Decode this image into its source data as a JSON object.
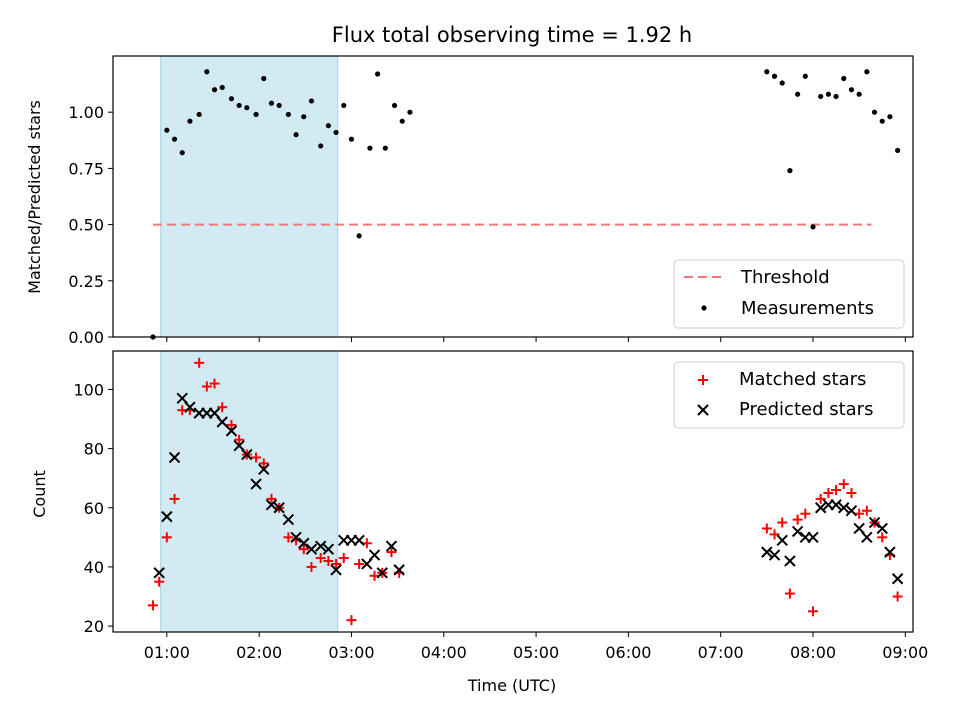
{
  "chart_data": [
    {
      "type": "scatter",
      "title": "Flux total observing time = 1.92 h",
      "xlabel": "",
      "ylabel": "Matched/Predicted stars",
      "xlim": [
        "00:25",
        "09:05"
      ],
      "ylim": [
        0,
        1.25
      ],
      "yticks": [
        {
          "value": 0,
          "label": "0.00"
        },
        {
          "value": 0.25,
          "label": "0.25"
        },
        {
          "value": 0.5,
          "label": "0.50"
        },
        {
          "value": 0.75,
          "label": "0.75"
        },
        {
          "value": 1.0,
          "label": "1.00"
        }
      ],
      "xticks": [
        "01:00",
        "02:00",
        "03:00",
        "04:00",
        "05:00",
        "06:00",
        "07:00",
        "08:00",
        "09:00"
      ],
      "shaded_interval": [
        "00:56",
        "02:51"
      ],
      "shaded_color": "#add8e6",
      "threshold": {
        "name": "Threshold",
        "value": 0.5,
        "x": [
          "00:51",
          "08:38"
        ],
        "color": "#f07878",
        "style": "dashed"
      },
      "legend": {
        "placement": "lower right",
        "entries": [
          "Threshold",
          "Measurements"
        ]
      },
      "series": [
        {
          "name": "Measurements",
          "marker": "dot",
          "color": "#000000",
          "points": [
            [
              "00:51",
              0.0
            ],
            [
              "01:00",
              0.92
            ],
            [
              "01:05",
              0.88
            ],
            [
              "01:10",
              0.82
            ],
            [
              "01:15",
              0.96
            ],
            [
              "01:21",
              0.99
            ],
            [
              "01:26",
              1.18
            ],
            [
              "01:31",
              1.1
            ],
            [
              "01:36",
              1.11
            ],
            [
              "01:42",
              1.06
            ],
            [
              "01:47",
              1.03
            ],
            [
              "01:52",
              1.02
            ],
            [
              "01:58",
              0.99
            ],
            [
              "02:03",
              1.15
            ],
            [
              "02:08",
              1.04
            ],
            [
              "02:13",
              1.03
            ],
            [
              "02:19",
              0.99
            ],
            [
              "02:24",
              0.9
            ],
            [
              "02:29",
              0.98
            ],
            [
              "02:34",
              1.05
            ],
            [
              "02:40",
              0.85
            ],
            [
              "02:45",
              0.94
            ],
            [
              "02:50",
              0.91
            ],
            [
              "02:55",
              1.03
            ],
            [
              "03:00",
              0.88
            ],
            [
              "03:05",
              0.45
            ],
            [
              "03:12",
              0.84
            ],
            [
              "03:17",
              1.17
            ],
            [
              "03:22",
              0.84
            ],
            [
              "03:28",
              1.03
            ],
            [
              "03:33",
              0.96
            ],
            [
              "03:38",
              1.0
            ],
            [
              "07:30",
              1.18
            ],
            [
              "07:35",
              1.16
            ],
            [
              "07:40",
              1.13
            ],
            [
              "07:45",
              0.74
            ],
            [
              "07:50",
              1.08
            ],
            [
              "07:55",
              1.16
            ],
            [
              "08:00",
              0.49
            ],
            [
              "08:05",
              1.07
            ],
            [
              "08:10",
              1.08
            ],
            [
              "08:15",
              1.07
            ],
            [
              "08:20",
              1.15
            ],
            [
              "08:25",
              1.1
            ],
            [
              "08:30",
              1.08
            ],
            [
              "08:35",
              1.18
            ],
            [
              "08:40",
              1.0
            ],
            [
              "08:45",
              0.96
            ],
            [
              "08:50",
              0.98
            ],
            [
              "08:55",
              0.83
            ]
          ]
        }
      ]
    },
    {
      "type": "scatter",
      "title": "",
      "xlabel": "Time (UTC)",
      "ylabel": "Count",
      "xlim": [
        "00:25",
        "09:05"
      ],
      "ylim": [
        18,
        113
      ],
      "yticks": [
        {
          "value": 20,
          "label": "20"
        },
        {
          "value": 40,
          "label": "40"
        },
        {
          "value": 60,
          "label": "60"
        },
        {
          "value": 80,
          "label": "80"
        },
        {
          "value": 100,
          "label": "100"
        }
      ],
      "xticks": [
        "01:00",
        "02:00",
        "03:00",
        "04:00",
        "05:00",
        "06:00",
        "07:00",
        "08:00",
        "09:00"
      ],
      "shaded_interval": [
        "00:56",
        "02:51"
      ],
      "shaded_color": "#add8e6",
      "legend": {
        "placement": "upper right",
        "entries": [
          "Matched stars",
          "Predicted stars"
        ]
      },
      "series": [
        {
          "name": "Matched stars",
          "marker": "plus",
          "color": "#ff0000",
          "points": [
            [
              "00:51",
              27
            ],
            [
              "00:55",
              35
            ],
            [
              "01:00",
              50
            ],
            [
              "01:05",
              63
            ],
            [
              "01:10",
              93
            ],
            [
              "01:15",
              93
            ],
            [
              "01:21",
              109
            ],
            [
              "01:26",
              101
            ],
            [
              "01:31",
              102
            ],
            [
              "01:36",
              94
            ],
            [
              "01:42",
              88
            ],
            [
              "01:47",
              83
            ],
            [
              "01:52",
              78
            ],
            [
              "01:58",
              77
            ],
            [
              "02:03",
              75
            ],
            [
              "02:08",
              63
            ],
            [
              "02:13",
              60
            ],
            [
              "02:19",
              50
            ],
            [
              "02:24",
              49
            ],
            [
              "02:29",
              46
            ],
            [
              "02:34",
              40
            ],
            [
              "02:40",
              43
            ],
            [
              "02:45",
              42
            ],
            [
              "02:50",
              41
            ],
            [
              "02:55",
              43
            ],
            [
              "03:00",
              22
            ],
            [
              "03:05",
              41
            ],
            [
              "03:10",
              48
            ],
            [
              "03:15",
              37
            ],
            [
              "03:20",
              38
            ],
            [
              "03:26",
              45
            ],
            [
              "03:31",
              38
            ],
            [
              "07:30",
              53
            ],
            [
              "07:35",
              51
            ],
            [
              "07:40",
              55
            ],
            [
              "07:45",
              31
            ],
            [
              "07:50",
              56
            ],
            [
              "07:55",
              58
            ],
            [
              "08:00",
              25
            ],
            [
              "08:05",
              63
            ],
            [
              "08:10",
              65
            ],
            [
              "08:15",
              66
            ],
            [
              "08:20",
              68
            ],
            [
              "08:25",
              65
            ],
            [
              "08:30",
              58
            ],
            [
              "08:35",
              59
            ],
            [
              "08:40",
              55
            ],
            [
              "08:45",
              50
            ],
            [
              "08:50",
              44
            ],
            [
              "08:55",
              30
            ]
          ]
        },
        {
          "name": "Predicted stars",
          "marker": "x",
          "color": "#000000",
          "points": [
            [
              "00:55",
              38
            ],
            [
              "01:00",
              57
            ],
            [
              "01:05",
              77
            ],
            [
              "01:10",
              97
            ],
            [
              "01:15",
              94
            ],
            [
              "01:21",
              92
            ],
            [
              "01:26",
              92
            ],
            [
              "01:31",
              92
            ],
            [
              "01:36",
              89
            ],
            [
              "01:42",
              86
            ],
            [
              "01:47",
              81
            ],
            [
              "01:52",
              78
            ],
            [
              "01:58",
              68
            ],
            [
              "02:03",
              73
            ],
            [
              "02:08",
              61
            ],
            [
              "02:13",
              60
            ],
            [
              "02:19",
              56
            ],
            [
              "02:24",
              50
            ],
            [
              "02:29",
              48
            ],
            [
              "02:34",
              46
            ],
            [
              "02:40",
              47
            ],
            [
              "02:45",
              46
            ],
            [
              "02:50",
              39
            ],
            [
              "02:55",
              49
            ],
            [
              "03:00",
              49
            ],
            [
              "03:05",
              49
            ],
            [
              "03:10",
              41
            ],
            [
              "03:15",
              44
            ],
            [
              "03:20",
              38
            ],
            [
              "03:26",
              47
            ],
            [
              "03:31",
              39
            ],
            [
              "07:30",
              45
            ],
            [
              "07:35",
              44
            ],
            [
              "07:40",
              49
            ],
            [
              "07:45",
              42
            ],
            [
              "07:50",
              52
            ],
            [
              "07:55",
              50
            ],
            [
              "08:00",
              50
            ],
            [
              "08:05",
              60
            ],
            [
              "08:10",
              61
            ],
            [
              "08:15",
              61
            ],
            [
              "08:20",
              60
            ],
            [
              "08:25",
              59
            ],
            [
              "08:30",
              53
            ],
            [
              "08:35",
              50
            ],
            [
              "08:40",
              55
            ],
            [
              "08:45",
              53
            ],
            [
              "08:50",
              45
            ],
            [
              "08:55",
              36
            ]
          ]
        }
      ]
    }
  ]
}
